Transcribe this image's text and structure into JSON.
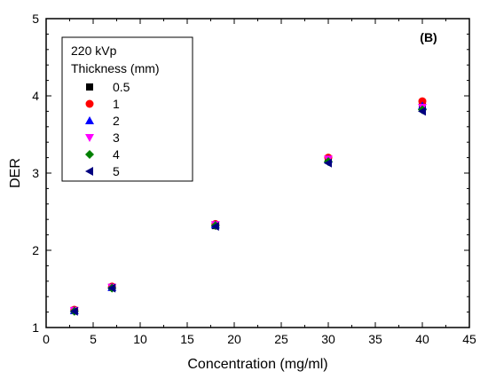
{
  "chart_data": {
    "type": "scatter",
    "panel_label": "(B)",
    "xlabel": "Concentration (mg/ml)",
    "ylabel": "DER",
    "xlim": [
      0,
      45
    ],
    "ylim": [
      1,
      5
    ],
    "xticks": [
      0,
      5,
      10,
      15,
      20,
      25,
      30,
      35,
      40,
      45
    ],
    "yticks": [
      1,
      2,
      3,
      4,
      5
    ],
    "grid": false,
    "legend": {
      "placement": "top-left",
      "title_lines": [
        "220 kVp",
        "Thickness (mm)"
      ]
    },
    "x": [
      3,
      7,
      18,
      30,
      40
    ],
    "series": [
      {
        "name": "0.5",
        "marker": "square",
        "color": "#000000",
        "values": [
          1.22,
          1.52,
          2.32,
          3.17,
          3.86
        ]
      },
      {
        "name": "1",
        "marker": "circle",
        "color": "#ff0000",
        "values": [
          1.23,
          1.53,
          2.34,
          3.2,
          3.93
        ]
      },
      {
        "name": "2",
        "marker": "triangle-up",
        "color": "#0000ff",
        "values": [
          1.22,
          1.52,
          2.33,
          3.18,
          3.87
        ]
      },
      {
        "name": "3",
        "marker": "triangle-down",
        "color": "#ff00ff",
        "values": [
          1.22,
          1.52,
          2.33,
          3.18,
          3.85
        ]
      },
      {
        "name": "4",
        "marker": "diamond",
        "color": "#008000",
        "values": [
          1.21,
          1.51,
          2.32,
          3.15,
          3.82
        ]
      },
      {
        "name": "5",
        "marker": "triangle-left",
        "color": "#000080",
        "values": [
          1.21,
          1.51,
          2.31,
          3.13,
          3.8
        ]
      }
    ]
  }
}
